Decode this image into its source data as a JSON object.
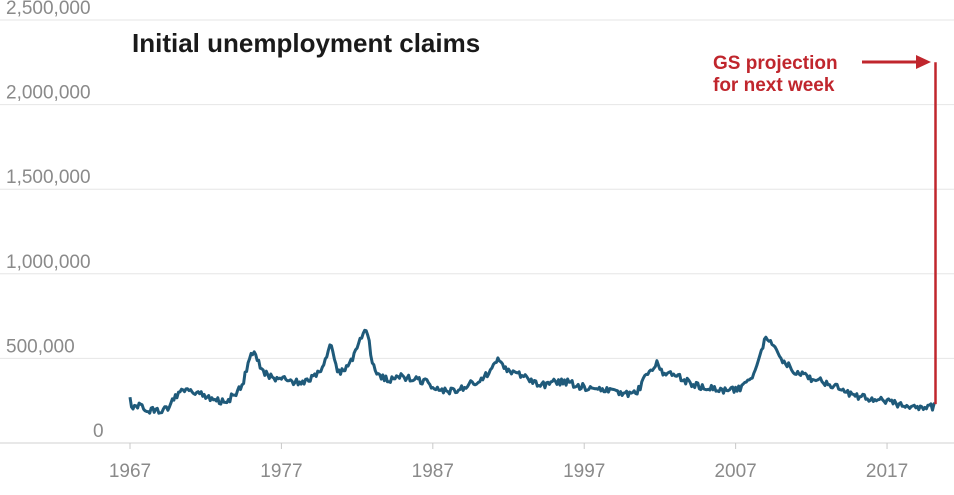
{
  "chart_data": {
    "type": "line",
    "title": "Initial unemployment claims",
    "xlabel": "",
    "ylabel": "",
    "xlim": [
      1967,
      2020.3
    ],
    "ylim": [
      0,
      2500000
    ],
    "x_ticks": [
      1967,
      1977,
      1987,
      1997,
      2007,
      2017
    ],
    "x_tick_labels": [
      "1967",
      "1977",
      "1987",
      "1997",
      "2007",
      "2017"
    ],
    "y_ticks": [
      0,
      500000,
      1000000,
      1500000,
      2000000,
      2500000
    ],
    "y_tick_labels": [
      "0",
      "500,000",
      "1,000,000",
      "1,500,000",
      "2,000,000",
      "2,500,000"
    ],
    "grid": true,
    "series": [
      {
        "color": "#1f5a7a",
        "x": [
          1967.0,
          1967.2,
          1967.5,
          1968.0,
          1968.5,
          1969.0,
          1969.5,
          1970.0,
          1970.4,
          1970.8,
          1971.2,
          1971.6,
          1972.0,
          1972.5,
          1973.0,
          1973.5,
          1974.0,
          1974.5,
          1974.8,
          1975.0,
          1975.2,
          1975.5,
          1975.8,
          1976.2,
          1976.6,
          1977.0,
          1977.5,
          1978.0,
          1978.5,
          1979.0,
          1979.5,
          1980.0,
          1980.2,
          1980.4,
          1980.6,
          1980.9,
          1981.2,
          1981.6,
          1982.0,
          1982.3,
          1982.6,
          1982.8,
          1983.0,
          1983.3,
          1983.7,
          1984.0,
          1984.5,
          1985.0,
          1985.5,
          1986.0,
          1986.5,
          1987.0,
          1987.5,
          1988.0,
          1988.5,
          1989.0,
          1989.5,
          1990.0,
          1990.5,
          1991.0,
          1991.3,
          1991.6,
          1992.0,
          1992.5,
          1993.0,
          1993.5,
          1994.0,
          1994.5,
          1995.0,
          1995.5,
          1996.0,
          1996.5,
          1997.0,
          1997.5,
          1998.0,
          1998.5,
          1999.0,
          1999.5,
          2000.0,
          2000.5,
          2001.0,
          2001.4,
          2001.8,
          2002.2,
          2002.6,
          2003.0,
          2003.5,
          2004.0,
          2004.5,
          2005.0,
          2005.5,
          2006.0,
          2006.5,
          2007.0,
          2007.5,
          2008.0,
          2008.4,
          2008.8,
          2009.0,
          2009.2,
          2009.5,
          2009.8,
          2010.2,
          2010.6,
          2011.0,
          2011.5,
          2012.0,
          2012.5,
          2013.0,
          2013.5,
          2014.0,
          2014.5,
          2015.0,
          2015.5,
          2016.0,
          2016.5,
          2017.0,
          2017.5,
          2018.0,
          2018.5,
          2019.0,
          2019.5,
          2020.0,
          2020.2
        ],
        "values": [
          250000,
          210000,
          220000,
          200000,
          190000,
          195000,
          210000,
          270000,
          320000,
          310000,
          290000,
          300000,
          280000,
          260000,
          240000,
          250000,
          300000,
          360000,
          480000,
          550000,
          520000,
          470000,
          420000,
          400000,
          380000,
          380000,
          370000,
          360000,
          350000,
          380000,
          420000,
          500000,
          600000,
          520000,
          450000,
          420000,
          430000,
          480000,
          560000,
          620000,
          660000,
          600000,
          480000,
          420000,
          390000,
          370000,
          390000,
          390000,
          380000,
          370000,
          360000,
          340000,
          320000,
          310000,
          310000,
          330000,
          350000,
          370000,
          400000,
          460000,
          490000,
          450000,
          420000,
          410000,
          390000,
          370000,
          350000,
          340000,
          360000,
          360000,
          360000,
          340000,
          330000,
          320000,
          320000,
          310000,
          300000,
          300000,
          290000,
          300000,
          380000,
          420000,
          480000,
          410000,
          400000,
          410000,
          380000,
          350000,
          340000,
          330000,
          320000,
          310000,
          320000,
          320000,
          330000,
          370000,
          460000,
          560000,
          630000,
          620000,
          570000,
          520000,
          470000,
          450000,
          420000,
          410000,
          380000,
          370000,
          350000,
          340000,
          310000,
          290000,
          280000,
          270000,
          260000,
          260000,
          250000,
          240000,
          220000,
          215000,
          215000,
          210000,
          215000,
          230000
        ]
      },
      {
        "name": "GS projection",
        "color": "#c0262d",
        "x": [
          2020.2,
          2020.2
        ],
        "values": [
          230000,
          2250000
        ]
      }
    ],
    "annotation": {
      "text_lines": [
        "GS projection",
        "for next week"
      ],
      "color": "#c0262d"
    }
  }
}
